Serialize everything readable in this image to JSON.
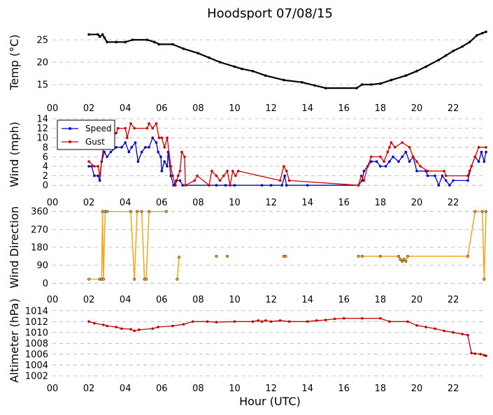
{
  "title": "Hoodsport 07/08/15",
  "xlabel": "Hour (UTC)",
  "x_tick_labels": [
    "00",
    "02",
    "04",
    "06",
    "08",
    "10",
    "12",
    "14",
    "16",
    "18",
    "20",
    "22"
  ],
  "colors": {
    "temp": "#000000",
    "speed": "#0000c8",
    "gust": "#d40000",
    "direction": "#f2a71b",
    "altimeter": "#c00000",
    "grid": "#b0b0b0"
  },
  "chart_data": [
    {
      "type": "line",
      "name": "temperature",
      "ylabel": "Temp (°C)",
      "xlim": [
        0,
        23.8
      ],
      "ylim": [
        12.5,
        27.5
      ],
      "yticks": [
        15,
        20,
        25
      ],
      "grid": true,
      "series": [
        {
          "points": [
            [
              2,
              26.2
            ],
            [
              2.5,
              26.2
            ],
            [
              2.6,
              25.7
            ],
            [
              2.75,
              26.2
            ],
            [
              2.85,
              25.5
            ],
            [
              3,
              24.5
            ],
            [
              3.5,
              24.5
            ],
            [
              4,
              24.5
            ],
            [
              4.4,
              25
            ],
            [
              5.2,
              25
            ],
            [
              5.6,
              24.5
            ],
            [
              5.85,
              24
            ],
            [
              6.6,
              24
            ],
            [
              7.2,
              23
            ],
            [
              8,
              22
            ],
            [
              8.6,
              21
            ],
            [
              9.2,
              20
            ],
            [
              10,
              19
            ],
            [
              10.4,
              18.5
            ],
            [
              11,
              18
            ],
            [
              11.7,
              17
            ],
            [
              12.7,
              16
            ],
            [
              13.7,
              15.5
            ],
            [
              14.4,
              14.8
            ],
            [
              15,
              14.2
            ],
            [
              16.7,
              14.2
            ],
            [
              17,
              15
            ],
            [
              17.5,
              15
            ],
            [
              18,
              15.2
            ],
            [
              18.6,
              16
            ],
            [
              19.4,
              17
            ],
            [
              20,
              18
            ],
            [
              20.5,
              19
            ],
            [
              21.2,
              20.5
            ],
            [
              21.6,
              21.5
            ],
            [
              22,
              22.5
            ],
            [
              22.5,
              23.5
            ],
            [
              22.9,
              24.5
            ],
            [
              23.3,
              26
            ],
            [
              23.6,
              26.5
            ],
            [
              23.8,
              26.8
            ]
          ]
        }
      ]
    },
    {
      "type": "line",
      "name": "wind-speed",
      "ylabel": "Wind (mph)",
      "xlim": [
        0,
        23.8
      ],
      "ylim": [
        -1,
        14
      ],
      "yticks": [
        0,
        2,
        4,
        6,
        8,
        10,
        12,
        14
      ],
      "grid": true,
      "legend": "top-left",
      "series": [
        {
          "name": "Speed",
          "points": [
            [
              2,
              4
            ],
            [
              2.15,
              4
            ],
            [
              2.3,
              2
            ],
            [
              2.5,
              2
            ],
            [
              2.6,
              1
            ],
            [
              2.7,
              5
            ],
            [
              2.85,
              7
            ],
            [
              3,
              6
            ],
            [
              3.2,
              7
            ],
            [
              3.5,
              8
            ],
            [
              3.8,
              8
            ],
            [
              4,
              9
            ],
            [
              4.2,
              7
            ],
            [
              4.35,
              8
            ],
            [
              4.55,
              9
            ],
            [
              4.7,
              5
            ],
            [
              4.9,
              7
            ],
            [
              5.1,
              8
            ],
            [
              5.3,
              8
            ],
            [
              5.5,
              10
            ],
            [
              5.7,
              9
            ],
            [
              5.8,
              7
            ],
            [
              5.95,
              6
            ],
            [
              6,
              3
            ],
            [
              6.15,
              5
            ],
            [
              6.3,
              4
            ],
            [
              6.35,
              7
            ],
            [
              6.5,
              2
            ],
            [
              6.65,
              0
            ],
            [
              6.8,
              1
            ],
            [
              7,
              1
            ],
            [
              7.15,
              0
            ],
            [
              9,
              0
            ],
            [
              9.5,
              0
            ],
            [
              10,
              0
            ],
            [
              11.5,
              0
            ],
            [
              12,
              0
            ],
            [
              12.6,
              0
            ],
            [
              12.75,
              2
            ],
            [
              12.85,
              0
            ],
            [
              14,
              0
            ],
            [
              16.8,
              0
            ],
            [
              17,
              1
            ],
            [
              17.1,
              3
            ],
            [
              17.3,
              4
            ],
            [
              17.5,
              5
            ],
            [
              17.8,
              5
            ],
            [
              18,
              4
            ],
            [
              18.3,
              4
            ],
            [
              18.5,
              5
            ],
            [
              18.7,
              6
            ],
            [
              19,
              5
            ],
            [
              19.2,
              6
            ],
            [
              19.4,
              7
            ],
            [
              19.6,
              5
            ],
            [
              19.8,
              6
            ],
            [
              20,
              3
            ],
            [
              20.5,
              3
            ],
            [
              20.6,
              2
            ],
            [
              21,
              2
            ],
            [
              21.2,
              0
            ],
            [
              21.4,
              2
            ],
            [
              21.6,
              1
            ],
            [
              21.8,
              0
            ],
            [
              22,
              1
            ],
            [
              22.8,
              1
            ],
            [
              23,
              4
            ],
            [
              23.2,
              6
            ],
            [
              23.4,
              5
            ],
            [
              23.55,
              7
            ],
            [
              23.7,
              5
            ],
            [
              23.8,
              7
            ]
          ]
        },
        {
          "name": "Gust",
          "points": [
            [
              2,
              5
            ],
            [
              2.3,
              4
            ],
            [
              2.5,
              4
            ],
            [
              2.6,
              2
            ],
            [
              2.8,
              8
            ],
            [
              3,
              12
            ],
            [
              3.2,
              10
            ],
            [
              3.5,
              11
            ],
            [
              3.6,
              12
            ],
            [
              4,
              12
            ],
            [
              4.1,
              10
            ],
            [
              4.3,
              13
            ],
            [
              4.5,
              12
            ],
            [
              5.2,
              12
            ],
            [
              5.3,
              13
            ],
            [
              5.5,
              12
            ],
            [
              5.7,
              13
            ],
            [
              5.85,
              10
            ],
            [
              6,
              10
            ],
            [
              6.15,
              8
            ],
            [
              6.3,
              10
            ],
            [
              6.5,
              4
            ],
            [
              6.6,
              2
            ],
            [
              6.75,
              0
            ],
            [
              6.9,
              2
            ],
            [
              7,
              3
            ],
            [
              7.1,
              7
            ],
            [
              7.25,
              6
            ],
            [
              7.3,
              0
            ],
            [
              7.8,
              1
            ],
            [
              7.95,
              2
            ],
            [
              8.6,
              0
            ],
            [
              8.75,
              3
            ],
            [
              9,
              2
            ],
            [
              9.2,
              1
            ],
            [
              9.4,
              2
            ],
            [
              9.6,
              3
            ],
            [
              9.75,
              0
            ],
            [
              9.9,
              3
            ],
            [
              10.05,
              2
            ],
            [
              10.2,
              3
            ],
            [
              12.5,
              1
            ],
            [
              12.7,
              4
            ],
            [
              12.85,
              3
            ],
            [
              13,
              1
            ],
            [
              16.8,
              0
            ],
            [
              16.95,
              2
            ],
            [
              17.1,
              1
            ],
            [
              17.3,
              4
            ],
            [
              17.5,
              6
            ],
            [
              18,
              6
            ],
            [
              18.2,
              5
            ],
            [
              18.4,
              7
            ],
            [
              18.5,
              8
            ],
            [
              18.6,
              9
            ],
            [
              18.8,
              8
            ],
            [
              19.2,
              9
            ],
            [
              19.6,
              8
            ],
            [
              19.8,
              6
            ],
            [
              20,
              5
            ],
            [
              20.2,
              4
            ],
            [
              20.6,
              3
            ],
            [
              21.5,
              3
            ],
            [
              21.6,
              2
            ],
            [
              22.8,
              2
            ],
            [
              22.9,
              3
            ],
            [
              23,
              4
            ],
            [
              23.2,
              6
            ],
            [
              23.4,
              8
            ],
            [
              23.8,
              8
            ]
          ]
        }
      ]
    },
    {
      "type": "line",
      "name": "wind-direction",
      "ylabel": "Wind Direction",
      "xlim": [
        0,
        23.8
      ],
      "ylim": [
        -20,
        380
      ],
      "yticks": [
        0,
        90,
        180,
        270,
        360
      ],
      "grid": true,
      "series": [
        {
          "points": [
            [
              2,
              20
            ],
            [
              2.6,
              20
            ],
            [
              2.7,
              20
            ],
            [
              2.75,
              360
            ],
            [
              2.8,
              20
            ],
            [
              2.9,
              360
            ],
            [
              3,
              360
            ],
            [
              4.3,
              360
            ],
            [
              4.5,
              20
            ],
            [
              4.65,
              360
            ],
            [
              4.9,
              360
            ],
            [
              5.05,
              20
            ],
            [
              5.15,
              20
            ],
            [
              5.3,
              360
            ],
            [
              6.25,
              360
            ]
          ]
        },
        {
          "points": [
            [
              6.85,
              20
            ],
            [
              6.95,
              130
            ]
          ]
        },
        {
          "points": [
            [
              17,
              135
            ],
            [
              18,
              135
            ],
            [
              19,
              135
            ],
            [
              19.1,
              120
            ],
            [
              19.2,
              110
            ],
            [
              19.3,
              120
            ],
            [
              19.4,
              110
            ],
            [
              19.5,
              135
            ],
            [
              22.8,
              135
            ],
            [
              23.2,
              360
            ],
            [
              23.6,
              360
            ],
            [
              23.7,
              20
            ],
            [
              23.8,
              360
            ]
          ]
        }
      ],
      "isolated_points": [
        [
          9,
          135
        ],
        [
          9.6,
          135
        ],
        [
          12.7,
          135
        ],
        [
          12.8,
          135
        ],
        [
          16.8,
          135
        ]
      ]
    },
    {
      "type": "line",
      "name": "altimeter",
      "ylabel": "Altimeter (hPa)",
      "xlim": [
        0,
        23.8
      ],
      "ylim": [
        1002,
        1015
      ],
      "yticks": [
        1002,
        1004,
        1006,
        1008,
        1010,
        1012,
        1014
      ],
      "grid": true,
      "series": [
        {
          "points": [
            [
              2,
              1012
            ],
            [
              2.3,
              1011.7
            ],
            [
              2.8,
              1011.4
            ],
            [
              3,
              1011.2
            ],
            [
              3.5,
              1011
            ],
            [
              3.8,
              1010.7
            ],
            [
              4.3,
              1010.6
            ],
            [
              4.5,
              1010.3
            ],
            [
              4.75,
              1010.5
            ],
            [
              5.5,
              1010.7
            ],
            [
              5.8,
              1011
            ],
            [
              6.6,
              1011.2
            ],
            [
              7.2,
              1011.5
            ],
            [
              7.7,
              1012
            ],
            [
              8.5,
              1012
            ],
            [
              9,
              1011.9
            ],
            [
              10,
              1012
            ],
            [
              11,
              1012
            ],
            [
              11.3,
              1012.2
            ],
            [
              11.5,
              1012
            ],
            [
              11.7,
              1012.2
            ],
            [
              12,
              1012
            ],
            [
              12.5,
              1012.2
            ],
            [
              13,
              1012
            ],
            [
              14,
              1012
            ],
            [
              14.5,
              1012.2
            ],
            [
              15,
              1012.3
            ],
            [
              15.5,
              1012.5
            ],
            [
              16,
              1012.6
            ],
            [
              17,
              1012.6
            ],
            [
              18,
              1012.6
            ],
            [
              18.5,
              1012
            ],
            [
              19.5,
              1012
            ],
            [
              20,
              1011.3
            ],
            [
              20.5,
              1011
            ],
            [
              21,
              1010.7
            ],
            [
              21.5,
              1010.3
            ],
            [
              22,
              1010
            ],
            [
              22.5,
              1009.7
            ],
            [
              22.8,
              1009.5
            ],
            [
              23,
              1006.2
            ],
            [
              23.2,
              1006.1
            ],
            [
              23.5,
              1006
            ],
            [
              23.7,
              1005.8
            ],
            [
              23.8,
              1005.7
            ]
          ]
        }
      ]
    }
  ]
}
